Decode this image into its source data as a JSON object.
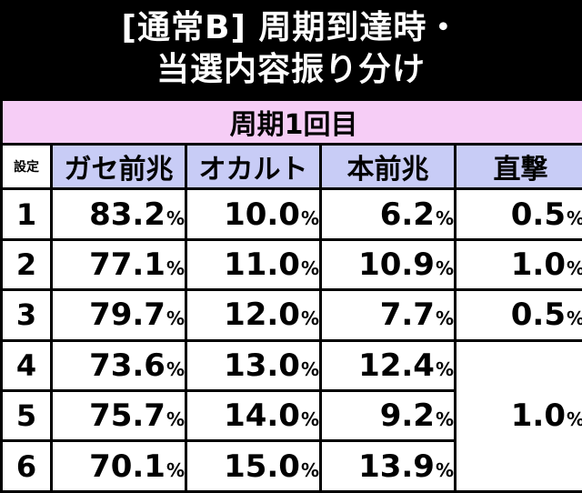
{
  "title": {
    "line1": "[通常B] 周期到達時・",
    "line2": "当選内容振り分け"
  },
  "period_label": "周期1回目",
  "headers": {
    "setting": "設定",
    "cols": [
      "ガセ前兆",
      "オカルト",
      "本前兆",
      "直撃"
    ]
  },
  "percent_sign": "%",
  "rows": [
    {
      "setting": "1",
      "gase": "83.2",
      "occult": "10.0",
      "hon": "6.2",
      "direct": "0.5"
    },
    {
      "setting": "2",
      "gase": "77.1",
      "occult": "11.0",
      "hon": "10.9",
      "direct": "1.0"
    },
    {
      "setting": "3",
      "gase": "79.7",
      "occult": "12.0",
      "hon": "7.7",
      "direct": "0.5"
    },
    {
      "setting": "4",
      "gase": "73.6",
      "occult": "13.0",
      "hon": "12.4"
    },
    {
      "setting": "5",
      "gase": "75.7",
      "occult": "14.0",
      "hon": "9.2"
    },
    {
      "setting": "6",
      "gase": "70.1",
      "occult": "15.0",
      "hon": "13.9"
    }
  ],
  "merged_direct_4_6": "1.0",
  "colors": {
    "background": "#000000",
    "title_text": "#ffffff",
    "period_band": "#f6cdf6",
    "header_band": "#c8ccf6",
    "cell": "#ffffff"
  }
}
